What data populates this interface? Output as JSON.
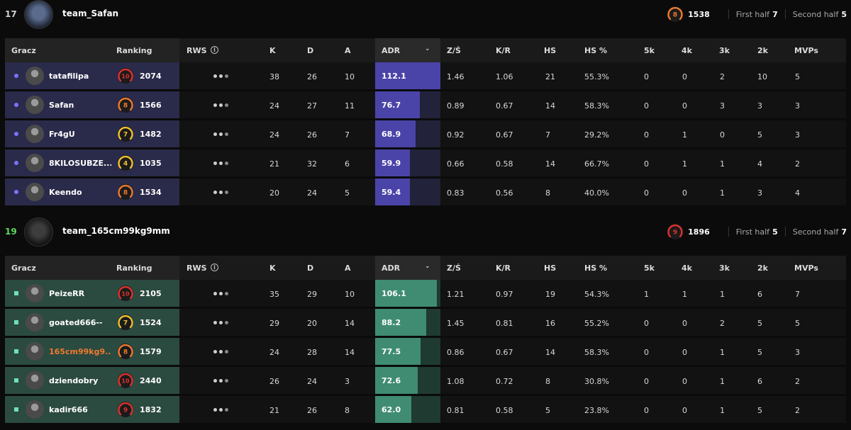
{
  "columns": {
    "player": "Gracz",
    "ranking": "Ranking",
    "rws": "RWS",
    "k": "K",
    "d": "D",
    "a": "A",
    "adr": "ADR",
    "kd": "Z/Ś",
    "kr": "K/R",
    "hs": "HS",
    "hs_pct": "HS %",
    "k5": "5k",
    "k4": "4k",
    "k3": "3k",
    "k2": "2k",
    "mvps": "MVPs"
  },
  "icons": {
    "info": "info-icon",
    "sort": "chevron-down-icon",
    "rws": "ellipsis-dots-icon"
  },
  "colors": {
    "team1_row": "#2a2a4a",
    "team1_adr": "#4b44a8",
    "team1_marker": "#7a72ff",
    "team2_row": "#2b4a40",
    "team2_adr": "#3f8c73",
    "team2_marker": "#6fe0b6",
    "win_score": "#5ddc5d",
    "level_red": "#e0312d",
    "level_orange": "#f07a2e",
    "level_yellow": "#f2c230"
  },
  "teams": [
    {
      "score": "17",
      "name": "team_Safan",
      "level": "8",
      "elo": "1538",
      "first_half_label": "First half",
      "first_half": "7",
      "second_half_label": "Second half",
      "second_half": "5",
      "players": [
        {
          "name": "tatafilipa",
          "level": "10",
          "elo": "2074",
          "k": "38",
          "d": "26",
          "a": "10",
          "adr": "112.1",
          "kd": "1.46",
          "kr": "1.06",
          "hs": "21",
          "hs_pct": "55.3%",
          "k5": "0",
          "k4": "0",
          "k3": "2",
          "k2": "10",
          "mvps": "5"
        },
        {
          "name": "Safan",
          "level": "8",
          "elo": "1566",
          "k": "24",
          "d": "27",
          "a": "11",
          "adr": "76.7",
          "kd": "0.89",
          "kr": "0.67",
          "hs": "14",
          "hs_pct": "58.3%",
          "k5": "0",
          "k4": "0",
          "k3": "3",
          "k2": "3",
          "mvps": "3"
        },
        {
          "name": "Fr4gU",
          "level": "7",
          "elo": "1482",
          "k": "24",
          "d": "26",
          "a": "7",
          "adr": "68.9",
          "kd": "0.92",
          "kr": "0.67",
          "hs": "7",
          "hs_pct": "29.2%",
          "k5": "0",
          "k4": "1",
          "k3": "0",
          "k2": "5",
          "mvps": "3"
        },
        {
          "name": "8KILOSUBZE...",
          "level": "4",
          "elo": "1035",
          "k": "21",
          "d": "32",
          "a": "6",
          "adr": "59.9",
          "kd": "0.66",
          "kr": "0.58",
          "hs": "14",
          "hs_pct": "66.7%",
          "k5": "0",
          "k4": "1",
          "k3": "1",
          "k2": "4",
          "mvps": "2"
        },
        {
          "name": "Keendo",
          "level": "8",
          "elo": "1534",
          "k": "20",
          "d": "24",
          "a": "5",
          "adr": "59.4",
          "kd": "0.83",
          "kr": "0.56",
          "hs": "8",
          "hs_pct": "40.0%",
          "k5": "0",
          "k4": "0",
          "k3": "1",
          "k2": "3",
          "mvps": "4"
        }
      ]
    },
    {
      "score": "19",
      "name": "team_165cm99kg9mm",
      "level": "9",
      "elo": "1896",
      "first_half_label": "First half",
      "first_half": "5",
      "second_half_label": "Second half",
      "second_half": "7",
      "players": [
        {
          "name": "PeizeRR",
          "level": "10",
          "elo": "2105",
          "k": "35",
          "d": "29",
          "a": "10",
          "adr": "106.1",
          "kd": "1.21",
          "kr": "0.97",
          "hs": "19",
          "hs_pct": "54.3%",
          "k5": "1",
          "k4": "1",
          "k3": "1",
          "k2": "6",
          "mvps": "7"
        },
        {
          "name": "goated666--",
          "level": "7",
          "elo": "1524",
          "k": "29",
          "d": "20",
          "a": "14",
          "adr": "88.2",
          "kd": "1.45",
          "kr": "0.81",
          "hs": "16",
          "hs_pct": "55.2%",
          "k5": "0",
          "k4": "0",
          "k3": "2",
          "k2": "5",
          "mvps": "5"
        },
        {
          "name": "165cm99kg9...",
          "level": "8",
          "elo": "1579",
          "k": "24",
          "d": "28",
          "a": "14",
          "adr": "77.5",
          "kd": "0.86",
          "kr": "0.67",
          "hs": "14",
          "hs_pct": "58.3%",
          "k5": "0",
          "k4": "0",
          "k3": "1",
          "k2": "5",
          "mvps": "3"
        },
        {
          "name": "dziendobry",
          "level": "10",
          "elo": "2440",
          "k": "26",
          "d": "24",
          "a": "3",
          "adr": "72.6",
          "kd": "1.08",
          "kr": "0.72",
          "hs": "8",
          "hs_pct": "30.8%",
          "k5": "0",
          "k4": "0",
          "k3": "1",
          "k2": "6",
          "mvps": "2"
        },
        {
          "name": "kadir666",
          "level": "9",
          "elo": "1832",
          "k": "21",
          "d": "26",
          "a": "8",
          "adr": "62.0",
          "kd": "0.81",
          "kr": "0.58",
          "hs": "5",
          "hs_pct": "23.8%",
          "k5": "0",
          "k4": "0",
          "k3": "1",
          "k2": "5",
          "mvps": "2"
        }
      ]
    }
  ]
}
